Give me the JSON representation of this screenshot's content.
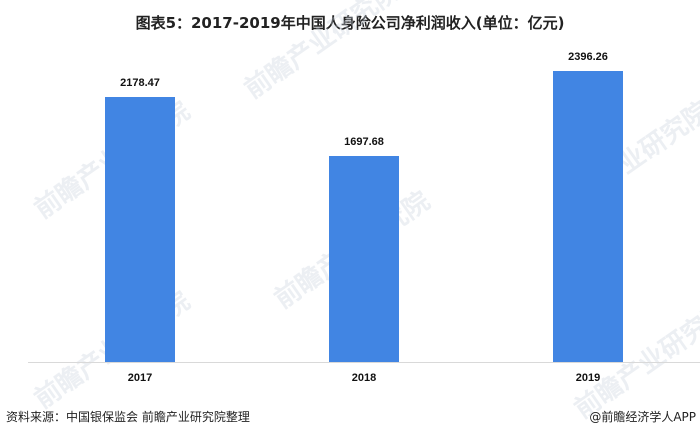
{
  "title": "图表5：2017-2019年中国人身险公司净利润收入(单位：亿元)",
  "chart_data": {
    "type": "bar",
    "title": "图表5：2017-2019年中国人身险公司净利润收入(单位：亿元)",
    "categories": [
      "2017",
      "2018",
      "2019"
    ],
    "values": [
      2178.47,
      1697.68,
      2396.26
    ],
    "value_labels": [
      "2178.47",
      "1697.68",
      "2396.26"
    ],
    "xlabel": "",
    "ylabel": "",
    "unit": "亿元",
    "ylim": [
      0,
      2650
    ],
    "grid": false,
    "legend": null,
    "bar_color": "#4185e3"
  },
  "footer": {
    "source": "资料来源：中国银保监会 前瞻产业研究院整理",
    "credit": "@前瞻经济学人APP"
  },
  "watermark": "前瞻产业研究院"
}
